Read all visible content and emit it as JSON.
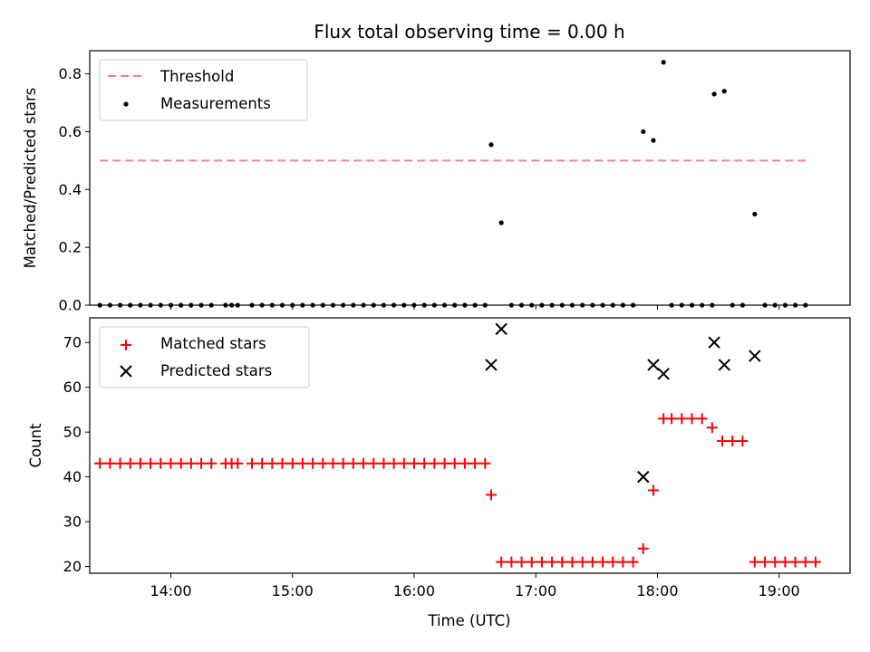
{
  "chart_data": [
    {
      "type": "scatter",
      "title": "Flux total observing time = 0.00 h",
      "xlabel": "",
      "ylabel": "Matched/Predicted stars",
      "xlim": [
        "13:20",
        "19:35"
      ],
      "ylim": [
        0,
        0.88
      ],
      "yticks": [
        "0.0",
        "0.2",
        "0.4",
        "0.6",
        "0.8"
      ],
      "ytick_values": [
        0,
        0.2,
        0.4,
        0.6,
        0.8
      ],
      "xtick_values": [
        "14:00",
        "15:00",
        "16:00",
        "17:00",
        "18:00",
        "19:00"
      ],
      "legend": {
        "placement": "top-left",
        "threshold_label": "Threshold",
        "measurements_label": "Measurements"
      },
      "threshold": {
        "y": 0.5,
        "x_from": "13:25",
        "x_to": "19:15",
        "color": "#ff7f7f"
      },
      "series": [
        {
          "name": "Measurements",
          "color": "#000000",
          "points": [
            [
              "13:25",
              0
            ],
            [
              "13:30",
              0
            ],
            [
              "13:35",
              0
            ],
            [
              "13:40",
              0
            ],
            [
              "13:45",
              0
            ],
            [
              "13:50",
              0
            ],
            [
              "13:55",
              0
            ],
            [
              "14:00",
              0
            ],
            [
              "14:05",
              0
            ],
            [
              "14:10",
              0
            ],
            [
              "14:15",
              0
            ],
            [
              "14:20",
              0
            ],
            [
              "14:27",
              0
            ],
            [
              "14:30",
              0
            ],
            [
              "14:33",
              0
            ],
            [
              "14:40",
              0
            ],
            [
              "14:45",
              0
            ],
            [
              "14:50",
              0
            ],
            [
              "14:55",
              0
            ],
            [
              "15:00",
              0
            ],
            [
              "15:05",
              0
            ],
            [
              "15:10",
              0
            ],
            [
              "15:15",
              0
            ],
            [
              "15:20",
              0
            ],
            [
              "15:25",
              0
            ],
            [
              "15:30",
              0
            ],
            [
              "15:35",
              0
            ],
            [
              "15:40",
              0
            ],
            [
              "15:45",
              0
            ],
            [
              "15:50",
              0
            ],
            [
              "15:55",
              0
            ],
            [
              "16:00",
              0
            ],
            [
              "16:05",
              0
            ],
            [
              "16:10",
              0
            ],
            [
              "16:15",
              0
            ],
            [
              "16:20",
              0
            ],
            [
              "16:25",
              0
            ],
            [
              "16:30",
              0
            ],
            [
              "16:35",
              0
            ],
            [
              "16:38",
              0.555
            ],
            [
              "16:43",
              0.285
            ],
            [
              "16:48",
              0
            ],
            [
              "16:53",
              0
            ],
            [
              "16:58",
              0
            ],
            [
              "17:03",
              0
            ],
            [
              "17:08",
              0
            ],
            [
              "17:13",
              0
            ],
            [
              "17:18",
              0
            ],
            [
              "17:23",
              0
            ],
            [
              "17:28",
              0
            ],
            [
              "17:33",
              0
            ],
            [
              "17:38",
              0
            ],
            [
              "17:43",
              0
            ],
            [
              "17:48",
              0
            ],
            [
              "17:53",
              0.6
            ],
            [
              "17:58",
              0.57
            ],
            [
              "18:03",
              0.84
            ],
            [
              "18:07",
              0
            ],
            [
              "18:12",
              0
            ],
            [
              "18:17",
              0
            ],
            [
              "18:22",
              0
            ],
            [
              "18:27",
              0
            ],
            [
              "18:28",
              0.73
            ],
            [
              "18:33",
              0.74
            ],
            [
              "18:37",
              0
            ],
            [
              "18:42",
              0
            ],
            [
              "18:48",
              0.315
            ],
            [
              "18:53",
              0
            ],
            [
              "18:58",
              0
            ],
            [
              "19:03",
              0
            ],
            [
              "19:08",
              0
            ],
            [
              "19:13",
              0
            ]
          ]
        }
      ]
    },
    {
      "type": "scatter",
      "title": "",
      "xlabel": "Time (UTC)",
      "ylabel": "Count",
      "xlim": [
        "13:20",
        "19:35"
      ],
      "ylim": [
        18.5,
        75.5
      ],
      "yticks": [
        "20",
        "30",
        "40",
        "50",
        "60",
        "70"
      ],
      "ytick_values": [
        20,
        30,
        40,
        50,
        60,
        70
      ],
      "xticks": [
        "14:00",
        "15:00",
        "16:00",
        "17:00",
        "18:00",
        "19:00"
      ],
      "xtick_values": [
        "14:00",
        "15:00",
        "16:00",
        "17:00",
        "18:00",
        "19:00"
      ],
      "legend": {
        "placement": "top-left",
        "matched_label": "Matched stars",
        "predicted_label": "Predicted stars"
      },
      "series": [
        {
          "name": "Matched stars",
          "color": "#ff0000",
          "marker": "plus",
          "points": [
            [
              "13:25",
              43
            ],
            [
              "13:30",
              43
            ],
            [
              "13:35",
              43
            ],
            [
              "13:40",
              43
            ],
            [
              "13:45",
              43
            ],
            [
              "13:50",
              43
            ],
            [
              "13:55",
              43
            ],
            [
              "14:00",
              43
            ],
            [
              "14:05",
              43
            ],
            [
              "14:10",
              43
            ],
            [
              "14:15",
              43
            ],
            [
              "14:20",
              43
            ],
            [
              "14:27",
              43
            ],
            [
              "14:30",
              43
            ],
            [
              "14:33",
              43
            ],
            [
              "14:40",
              43
            ],
            [
              "14:45",
              43
            ],
            [
              "14:50",
              43
            ],
            [
              "14:55",
              43
            ],
            [
              "15:00",
              43
            ],
            [
              "15:05",
              43
            ],
            [
              "15:10",
              43
            ],
            [
              "15:15",
              43
            ],
            [
              "15:20",
              43
            ],
            [
              "15:25",
              43
            ],
            [
              "15:30",
              43
            ],
            [
              "15:35",
              43
            ],
            [
              "15:40",
              43
            ],
            [
              "15:45",
              43
            ],
            [
              "15:50",
              43
            ],
            [
              "15:55",
              43
            ],
            [
              "16:00",
              43
            ],
            [
              "16:05",
              43
            ],
            [
              "16:10",
              43
            ],
            [
              "16:15",
              43
            ],
            [
              "16:20",
              43
            ],
            [
              "16:25",
              43
            ],
            [
              "16:30",
              43
            ],
            [
              "16:35",
              43
            ],
            [
              "16:38",
              36
            ],
            [
              "16:43",
              21
            ],
            [
              "16:48",
              21
            ],
            [
              "16:53",
              21
            ],
            [
              "16:58",
              21
            ],
            [
              "17:03",
              21
            ],
            [
              "17:08",
              21
            ],
            [
              "17:13",
              21
            ],
            [
              "17:18",
              21
            ],
            [
              "17:23",
              21
            ],
            [
              "17:28",
              21
            ],
            [
              "17:33",
              21
            ],
            [
              "17:38",
              21
            ],
            [
              "17:43",
              21
            ],
            [
              "17:48",
              21
            ],
            [
              "17:53",
              24
            ],
            [
              "17:58",
              37
            ],
            [
              "18:03",
              53
            ],
            [
              "18:07",
              53
            ],
            [
              "18:12",
              53
            ],
            [
              "18:17",
              53
            ],
            [
              "18:22",
              53
            ],
            [
              "18:27",
              51
            ],
            [
              "18:32",
              48
            ],
            [
              "18:37",
              48
            ],
            [
              "18:42",
              48
            ],
            [
              "18:48",
              21
            ],
            [
              "18:53",
              21
            ],
            [
              "18:58",
              21
            ],
            [
              "19:03",
              21
            ],
            [
              "19:08",
              21
            ],
            [
              "19:13",
              21
            ],
            [
              "19:18",
              21
            ]
          ]
        },
        {
          "name": "Predicted stars",
          "color": "#000000",
          "marker": "x",
          "points": [
            [
              "16:38",
              65
            ],
            [
              "16:43",
              73
            ],
            [
              "17:53",
              40
            ],
            [
              "17:58",
              65
            ],
            [
              "18:03",
              63
            ],
            [
              "18:28",
              70
            ],
            [
              "18:33",
              65
            ],
            [
              "18:48",
              67
            ]
          ]
        }
      ]
    }
  ]
}
